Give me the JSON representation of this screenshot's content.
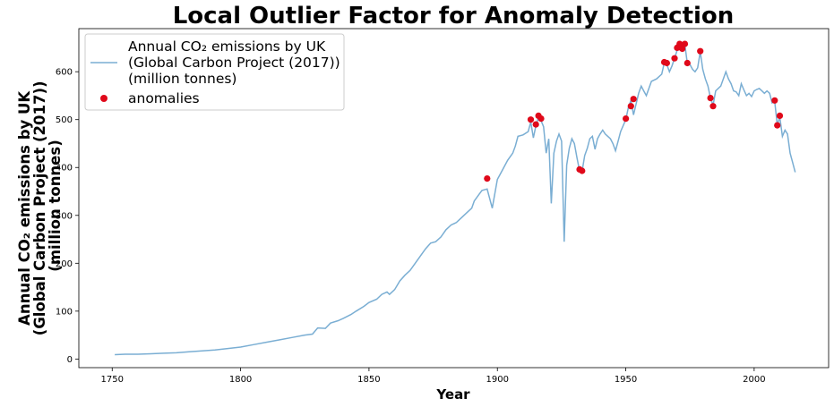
{
  "chart_data": {
    "type": "line",
    "title": "Local Outlier Factor for Anomaly Detection",
    "xlabel": "Year",
    "ylabel_lines": [
      "Annual CO₂ emissions by UK",
      "(Global Carbon Project (2017))",
      "(million tonnes)"
    ],
    "xlim": [
      1737,
      2029
    ],
    "ylim": [
      -18,
      690
    ],
    "xticks": [
      1750,
      1800,
      1850,
      1900,
      1950,
      2000
    ],
    "yticks": [
      0,
      100,
      200,
      300,
      400,
      500,
      600
    ],
    "grid": false,
    "legend_position": "top-left",
    "colors": {
      "line": "#7aaed3",
      "anomaly": "#e0091a"
    },
    "series": [
      {
        "name": "Annual CO₂ emissions by UK\n(Global Carbon Project (2017))\n(million tonnes)",
        "kind": "line",
        "x": [
          1751,
          1755,
          1760,
          1765,
          1770,
          1775,
          1780,
          1785,
          1790,
          1795,
          1800,
          1805,
          1810,
          1815,
          1820,
          1825,
          1828,
          1830,
          1833,
          1835,
          1838,
          1840,
          1843,
          1845,
          1848,
          1850,
          1853,
          1855,
          1857,
          1858,
          1860,
          1862,
          1864,
          1866,
          1868,
          1870,
          1872,
          1874,
          1876,
          1878,
          1880,
          1882,
          1884,
          1886,
          1888,
          1890,
          1891,
          1893,
          1894,
          1896,
          1898,
          1900,
          1902,
          1904,
          1906,
          1907,
          1908,
          1910,
          1912,
          1913,
          1914,
          1915,
          1916,
          1917,
          1918,
          1919,
          1920,
          1921,
          1922,
          1923,
          1924,
          1925,
          1926,
          1927,
          1928,
          1929,
          1930,
          1931,
          1932,
          1933,
          1934,
          1935,
          1936,
          1937,
          1938,
          1939,
          1940,
          1941,
          1942,
          1943,
          1944,
          1945,
          1946,
          1947,
          1948,
          1950,
          1951,
          1952,
          1953,
          1955,
          1956,
          1957,
          1958,
          1960,
          1962,
          1964,
          1965,
          1966,
          1967,
          1968,
          1969,
          1970,
          1971,
          1972,
          1973,
          1974,
          1975,
          1976,
          1977,
          1978,
          1979,
          1980,
          1981,
          1982,
          1983,
          1984,
          1985,
          1987,
          1989,
          1990,
          1991,
          1992,
          1993,
          1994,
          1995,
          1996,
          1997,
          1998,
          1999,
          2000,
          2001,
          2002,
          2003,
          2004,
          2005,
          2006,
          2007,
          2008,
          2009,
          2010,
          2011,
          2012,
          2013,
          2014,
          2015,
          2016
        ],
        "y": [
          9,
          10,
          10,
          11,
          12,
          13,
          15,
          17,
          19,
          22,
          25,
          30,
          35,
          40,
          45,
          50,
          52,
          65,
          64,
          75,
          80,
          85,
          93,
          100,
          110,
          118,
          125,
          135,
          140,
          135,
          145,
          163,
          175,
          185,
          200,
          215,
          230,
          242,
          245,
          255,
          270,
          280,
          285,
          295,
          305,
          315,
          330,
          345,
          352,
          355,
          315,
          375,
          395,
          415,
          430,
          445,
          465,
          468,
          475,
          495,
          462,
          487,
          505,
          498,
          485,
          430,
          460,
          325,
          430,
          455,
          470,
          455,
          245,
          405,
          440,
          460,
          450,
          420,
          393,
          392,
          425,
          440,
          460,
          465,
          438,
          460,
          470,
          478,
          470,
          465,
          460,
          450,
          435,
          455,
          475,
          500,
          525,
          540,
          510,
          555,
          570,
          560,
          550,
          580,
          585,
          595,
          618,
          615,
          600,
          612,
          628,
          645,
          650,
          648,
          657,
          617,
          615,
          605,
          600,
          608,
          642,
          605,
          585,
          570,
          545,
          530,
          560,
          570,
          600,
          585,
          575,
          560,
          558,
          550,
          575,
          562,
          550,
          555,
          548,
          560,
          563,
          565,
          560,
          555,
          560,
          555,
          535,
          538,
          489,
          505,
          465,
          478,
          470,
          430,
          410,
          390
        ]
      },
      {
        "name": "anomalies",
        "kind": "scatter",
        "x": [
          1896,
          1913,
          1915,
          1916,
          1917,
          1932,
          1933,
          1950,
          1952,
          1953,
          1965,
          1966,
          1969,
          1970,
          1971,
          1972,
          1973,
          1974,
          1979,
          1983,
          1984,
          2008,
          2009,
          2010
        ],
        "y": [
          377,
          500,
          490,
          508,
          502,
          396,
          393,
          502,
          528,
          543,
          620,
          618,
          628,
          650,
          658,
          648,
          658,
          618,
          643,
          545,
          528,
          540,
          488,
          508
        ]
      }
    ]
  }
}
